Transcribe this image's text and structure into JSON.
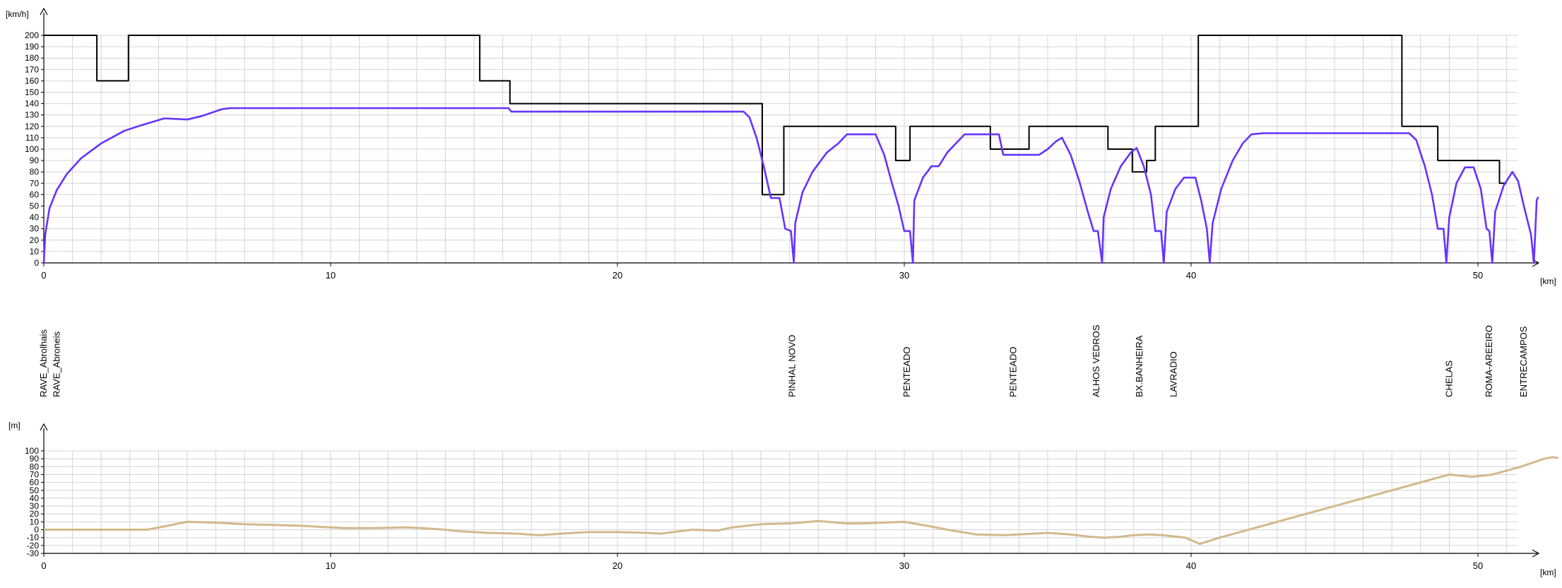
{
  "chart_data": [
    {
      "type": "line",
      "name": "speed-profile",
      "ylabel": "[km/h]",
      "xlabel": "[km]",
      "xlim": [
        0,
        53
      ],
      "ylim": [
        0,
        200
      ],
      "xticks": [
        0,
        10,
        20,
        30,
        40,
        50
      ],
      "yticks": [
        0,
        10,
        20,
        30,
        40,
        50,
        60,
        70,
        80,
        90,
        100,
        110,
        120,
        130,
        140,
        150,
        160,
        170,
        180,
        190,
        200
      ],
      "grid": true,
      "colors": {
        "limit": "#000000",
        "actual": "#6633ff"
      },
      "series": [
        {
          "key": "limit",
          "points": [
            [
              0,
              200
            ],
            [
              1.85,
              200
            ],
            [
              1.85,
              160
            ],
            [
              2.95,
              160
            ],
            [
              2.95,
              200
            ],
            [
              15.2,
              200
            ],
            [
              15.2,
              160
            ],
            [
              16.25,
              160
            ],
            [
              16.25,
              140
            ],
            [
              25.05,
              140
            ],
            [
              25.05,
              60
            ],
            [
              25.8,
              60
            ],
            [
              25.8,
              120
            ],
            [
              29.7,
              120
            ],
            [
              29.7,
              90
            ],
            [
              30.2,
              90
            ],
            [
              30.2,
              120
            ],
            [
              33.0,
              120
            ],
            [
              33.0,
              100
            ],
            [
              34.35,
              100
            ],
            [
              34.35,
              120
            ],
            [
              37.1,
              120
            ],
            [
              37.1,
              100
            ],
            [
              37.95,
              100
            ],
            [
              37.95,
              80
            ],
            [
              38.45,
              80
            ],
            [
              38.45,
              90
            ],
            [
              38.75,
              90
            ],
            [
              38.75,
              120
            ],
            [
              40.25,
              120
            ],
            [
              40.25,
              200
            ],
            [
              47.35,
              200
            ],
            [
              47.35,
              120
            ],
            [
              48.6,
              120
            ],
            [
              48.6,
              90
            ],
            [
              50.75,
              90
            ],
            [
              50.75,
              70
            ],
            [
              51.0,
              70
            ]
          ]
        },
        {
          "key": "actual",
          "points": [
            [
              0,
              0
            ],
            [
              0.05,
              25
            ],
            [
              0.2,
              48
            ],
            [
              0.45,
              64
            ],
            [
              0.8,
              78
            ],
            [
              1.3,
              92
            ],
            [
              2.0,
              105
            ],
            [
              2.8,
              116
            ],
            [
              3.4,
              121
            ],
            [
              3.8,
              124
            ],
            [
              4.2,
              127
            ],
            [
              5.0,
              126
            ],
            [
              5.5,
              129
            ],
            [
              6.2,
              135
            ],
            [
              6.5,
              136
            ],
            [
              16.2,
              136
            ],
            [
              16.3,
              133
            ],
            [
              24.4,
              133
            ],
            [
              24.6,
              128
            ],
            [
              24.85,
              110
            ],
            [
              25.1,
              85
            ],
            [
              25.35,
              57
            ],
            [
              25.65,
              57
            ],
            [
              25.85,
              30
            ],
            [
              26.05,
              28
            ],
            [
              26.15,
              0
            ],
            [
              26.2,
              35
            ],
            [
              26.45,
              62
            ],
            [
              26.8,
              80
            ],
            [
              27.3,
              97
            ],
            [
              27.7,
              105
            ],
            [
              28.0,
              113
            ],
            [
              29.0,
              113
            ],
            [
              29.3,
              95
            ],
            [
              29.55,
              72
            ],
            [
              29.8,
              50
            ],
            [
              30.0,
              28
            ],
            [
              30.2,
              28
            ],
            [
              30.3,
              0
            ],
            [
              30.35,
              55
            ],
            [
              30.65,
              75
            ],
            [
              30.95,
              85
            ],
            [
              31.2,
              85
            ],
            [
              31.5,
              97
            ],
            [
              31.8,
              105
            ],
            [
              32.1,
              113
            ],
            [
              33.3,
              113
            ],
            [
              33.45,
              95
            ],
            [
              34.7,
              95
            ],
            [
              35.0,
              100
            ],
            [
              35.3,
              107
            ],
            [
              35.5,
              110
            ],
            [
              35.8,
              95
            ],
            [
              36.1,
              72
            ],
            [
              36.4,
              45
            ],
            [
              36.6,
              28
            ],
            [
              36.75,
              28
            ],
            [
              36.9,
              0
            ],
            [
              36.95,
              40
            ],
            [
              37.2,
              65
            ],
            [
              37.55,
              85
            ],
            [
              37.9,
              97
            ],
            [
              38.1,
              101
            ],
            [
              38.35,
              85
            ],
            [
              38.6,
              60
            ],
            [
              38.75,
              28
            ],
            [
              38.95,
              28
            ],
            [
              39.05,
              0
            ],
            [
              39.15,
              45
            ],
            [
              39.45,
              65
            ],
            [
              39.75,
              75
            ],
            [
              40.15,
              75
            ],
            [
              40.35,
              55
            ],
            [
              40.55,
              30
            ],
            [
              40.65,
              0
            ],
            [
              40.75,
              35
            ],
            [
              41.05,
              65
            ],
            [
              41.45,
              90
            ],
            [
              41.8,
              105
            ],
            [
              42.1,
              113
            ],
            [
              42.5,
              114
            ],
            [
              44.0,
              114
            ],
            [
              47.6,
              114
            ],
            [
              47.85,
              108
            ],
            [
              48.15,
              85
            ],
            [
              48.4,
              60
            ],
            [
              48.6,
              30
            ],
            [
              48.8,
              30
            ],
            [
              48.9,
              0
            ],
            [
              49.0,
              40
            ],
            [
              49.25,
              70
            ],
            [
              49.55,
              84
            ],
            [
              49.85,
              84
            ],
            [
              50.1,
              65
            ],
            [
              50.3,
              30
            ],
            [
              50.4,
              28
            ],
            [
              50.5,
              0
            ],
            [
              50.6,
              45
            ],
            [
              50.9,
              68
            ],
            [
              51.2,
              80
            ],
            [
              51.4,
              72
            ],
            [
              51.6,
              50
            ],
            [
              51.85,
              25
            ],
            [
              51.95,
              0
            ],
            [
              52.05,
              55
            ],
            [
              52.1,
              58
            ]
          ]
        }
      ]
    },
    {
      "type": "line",
      "name": "elevation-profile",
      "ylabel": "[m]",
      "xlabel": "[km]",
      "xlim": [
        0,
        53
      ],
      "ylim": [
        -30,
        100
      ],
      "xticks": [
        0,
        10,
        20,
        30,
        40,
        50
      ],
      "yticks": [
        -30,
        -20,
        -10,
        0,
        10,
        20,
        30,
        40,
        50,
        60,
        70,
        80,
        90,
        100
      ],
      "grid": true,
      "colors": {
        "line": "#d2b98c"
      },
      "points": [
        [
          0,
          0
        ],
        [
          1.0,
          0
        ],
        [
          3.6,
          0
        ],
        [
          4.3,
          5
        ],
        [
          5.0,
          10
        ],
        [
          6.0,
          9
        ],
        [
          7.0,
          7
        ],
        [
          8.0,
          6
        ],
        [
          9.0,
          5
        ],
        [
          10.0,
          3
        ],
        [
          10.5,
          2
        ],
        [
          11.5,
          2
        ],
        [
          12.6,
          3
        ],
        [
          13.2,
          2
        ],
        [
          14.0,
          0
        ],
        [
          14.5,
          -2
        ],
        [
          15.5,
          -4
        ],
        [
          16.5,
          -5
        ],
        [
          17.3,
          -7
        ],
        [
          18.0,
          -5
        ],
        [
          19.0,
          -3
        ],
        [
          20.0,
          -3
        ],
        [
          21.0,
          -4
        ],
        [
          21.5,
          -5
        ],
        [
          22.6,
          0
        ],
        [
          23.5,
          -1
        ],
        [
          24.0,
          3
        ],
        [
          25.0,
          7
        ],
        [
          26.0,
          8
        ],
        [
          27.0,
          11
        ],
        [
          28.0,
          8
        ],
        [
          28.5,
          8
        ],
        [
          30.0,
          10
        ],
        [
          30.8,
          5
        ],
        [
          31.5,
          0
        ],
        [
          32.5,
          -6
        ],
        [
          33.5,
          -7
        ],
        [
          34.5,
          -5
        ],
        [
          35.0,
          -4
        ],
        [
          35.8,
          -6
        ],
        [
          36.5,
          -9
        ],
        [
          37.0,
          -10
        ],
        [
          37.5,
          -9
        ],
        [
          38.0,
          -7
        ],
        [
          38.5,
          -6
        ],
        [
          39.0,
          -7
        ],
        [
          39.8,
          -10
        ],
        [
          40.3,
          -18
        ],
        [
          41.0,
          -10
        ],
        [
          42.5,
          5
        ],
        [
          44.0,
          20
        ],
        [
          45.5,
          35
        ],
        [
          47.0,
          50
        ],
        [
          48.5,
          65
        ],
        [
          49.0,
          70
        ],
        [
          49.8,
          67
        ],
        [
          50.5,
          70
        ],
        [
          51.5,
          80
        ],
        [
          52.3,
          90
        ],
        [
          52.6,
          92
        ],
        [
          52.8,
          91
        ]
      ]
    }
  ],
  "stations": [
    {
      "label": "RAVE_Abrolhais",
      "km": 0
    },
    {
      "label": "RAVE_Abroneis",
      "km": 0.45
    },
    {
      "label": "PINHAL NOVO",
      "km": 26.1
    },
    {
      "label": "PENTEADO",
      "km": 30.1
    },
    {
      "label": "PENTEADO",
      "km": 33.8
    },
    {
      "label": "ALHOS VEDROS",
      "km": 36.7
    },
    {
      "label": "BX.BANHEIRA",
      "km": 38.2
    },
    {
      "label": "LAVRADIO",
      "km": 39.4
    },
    {
      "label": "CHELAS",
      "km": 49.0
    },
    {
      "label": "ROMA-AREEIRO",
      "km": 50.4
    },
    {
      "label": "ENTRECAMPOS",
      "km": 51.6
    }
  ]
}
